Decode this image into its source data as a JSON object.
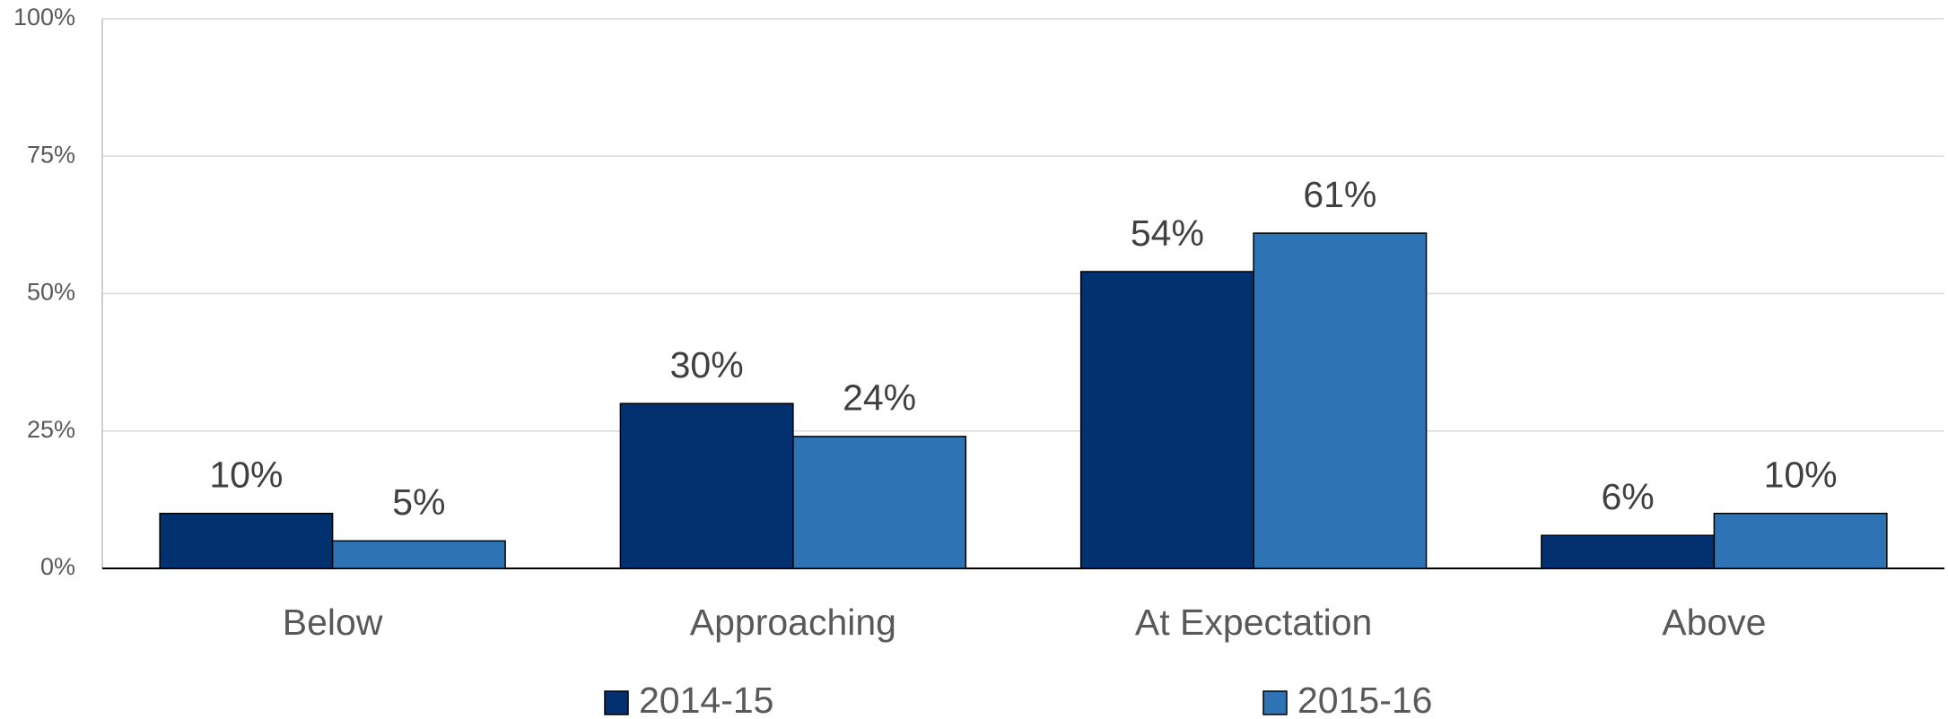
{
  "chart_data": {
    "type": "bar",
    "categories": [
      "Below",
      "Approaching",
      "At Expectation",
      "Above"
    ],
    "series": [
      {
        "name": "2014-15",
        "color": "#03306e",
        "values": [
          10,
          30,
          54,
          6
        ],
        "value_labels": [
          "10%",
          "30%",
          "54%",
          "6%"
        ]
      },
      {
        "name": "2015-16",
        "color": "#2e74b5",
        "values": [
          5,
          24,
          61,
          10
        ],
        "value_labels": [
          "5%",
          "24%",
          "61%",
          "10%"
        ]
      }
    ],
    "ylim": [
      0,
      100
    ],
    "yticks": [
      {
        "value": 0,
        "label": "0%"
      },
      {
        "value": 25,
        "label": "25%"
      },
      {
        "value": 50,
        "label": "50%"
      },
      {
        "value": 75,
        "label": "75%"
      },
      {
        "value": 100,
        "label": "100%"
      }
    ],
    "grid": true,
    "legend": "bottom"
  }
}
